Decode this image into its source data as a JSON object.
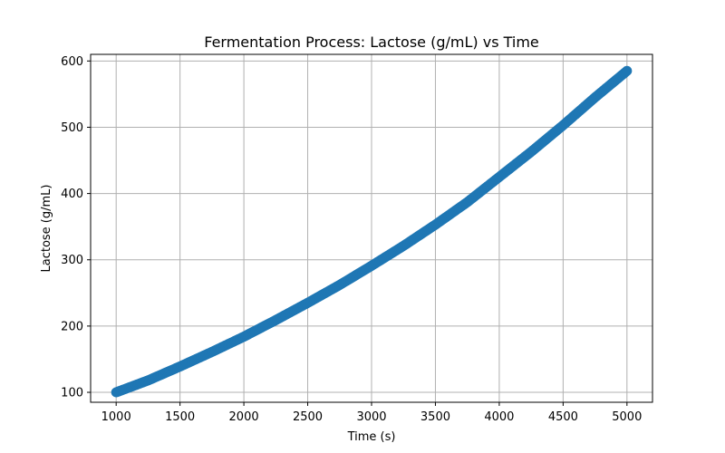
{
  "chart_data": {
    "type": "scatter",
    "title": "Fermentation Process: Lactose (g/mL) vs Time",
    "xlabel": "Time (s)",
    "ylabel": "Lactose (g/mL)",
    "xlim": [
      800,
      5200
    ],
    "ylim": [
      85,
      610
    ],
    "xticks": [
      1000,
      1500,
      2000,
      2500,
      3000,
      3500,
      4000,
      4500,
      5000
    ],
    "yticks": [
      100,
      200,
      300,
      400,
      500,
      600
    ],
    "grid": true,
    "color": "#1f77b4",
    "series": [
      {
        "x": [
          1000,
          1250,
          1500,
          1750,
          2000,
          2250,
          2500,
          2750,
          3000,
          3250,
          3500,
          3750,
          4000,
          4250,
          4500,
          4750,
          5000
        ],
        "y": [
          100,
          118,
          139,
          161,
          184,
          209,
          235,
          262,
          291,
          321,
          353,
          387,
          425,
          463,
          503,
          545,
          585
        ]
      }
    ]
  }
}
